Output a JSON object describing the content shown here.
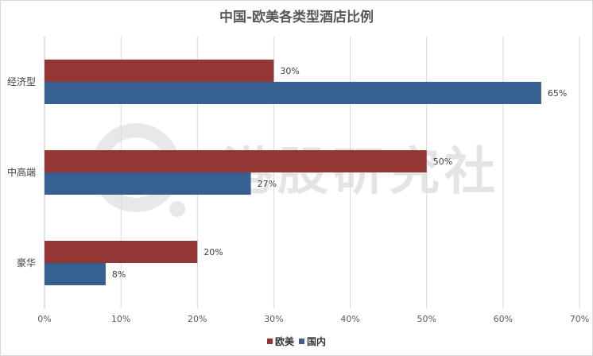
{
  "chart_data": {
    "type": "bar",
    "orientation": "horizontal",
    "title": "中国-欧美各类型酒店比例",
    "categories": [
      "经济型",
      "中高端",
      "豪华"
    ],
    "series": [
      {
        "name": "欧美",
        "values": [
          30,
          50,
          20
        ],
        "labels": [
          "30%",
          "50%",
          "20%"
        ],
        "color": "#943634"
      },
      {
        "name": "国内",
        "values": [
          65,
          27,
          8
        ],
        "labels": [
          "65%",
          "27%",
          "8%"
        ],
        "color": "#366092"
      }
    ],
    "xlim": [
      0,
      70
    ],
    "x_ticks": [
      0,
      10,
      20,
      30,
      40,
      50,
      60,
      70
    ],
    "x_tick_labels": [
      "0%",
      "10%",
      "20%",
      "30%",
      "40%",
      "50%",
      "60%",
      "70%"
    ],
    "grid": true,
    "legend_position": "bottom",
    "xlabel": "",
    "ylabel": ""
  },
  "watermark": {
    "text": "港股研究社",
    "color": "#e6e6e6"
  }
}
